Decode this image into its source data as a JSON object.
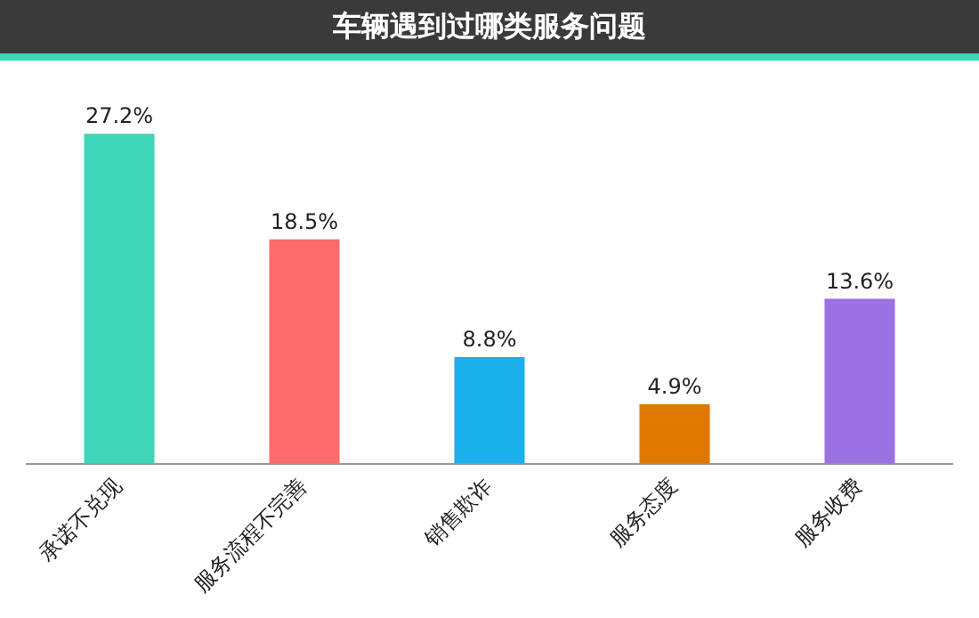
{
  "chart_data": {
    "type": "bar",
    "title": "车辆遇到过哪类服务问题",
    "categories": [
      "承诺不兑现",
      "服务流程不完善",
      "销售欺诈",
      "服务态度",
      "服务收费"
    ],
    "values": [
      27.2,
      18.5,
      8.8,
      4.9,
      13.6
    ],
    "colors": [
      "#3dd6b8",
      "#ff6b6b",
      "#1ab0ec",
      "#e07800",
      "#9b70e0"
    ],
    "value_labels": [
      "27.2%",
      "18.5%",
      "8.8%",
      "4.9%",
      "13.6%"
    ],
    "tick_labels": "x",
    "grid": false,
    "legend": false
  }
}
